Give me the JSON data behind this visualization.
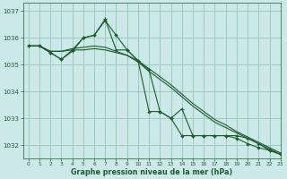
{
  "xlabel": "Graphe pression niveau de la mer (hPa)",
  "ylim": [
    1031.5,
    1037.3
  ],
  "xlim": [
    -0.5,
    23
  ],
  "yticks": [
    1032,
    1033,
    1034,
    1035,
    1036,
    1037
  ],
  "xticks": [
    0,
    1,
    2,
    3,
    4,
    5,
    6,
    7,
    8,
    9,
    10,
    11,
    12,
    13,
    14,
    15,
    16,
    17,
    18,
    19,
    20,
    21,
    22,
    23
  ],
  "bg_color": "#cce8e8",
  "grid_color": "#99ccbb",
  "line_color": "#1a5c2a",
  "smooth1": [
    1035.7,
    1035.7,
    1035.5,
    1035.5,
    1035.55,
    1035.55,
    1035.6,
    1035.55,
    1035.45,
    1035.35,
    1035.15,
    1034.85,
    1034.55,
    1034.25,
    1033.9,
    1033.55,
    1033.25,
    1032.95,
    1032.75,
    1032.5,
    1032.3,
    1032.1,
    1031.9,
    1031.7
  ],
  "smooth2": [
    1035.7,
    1035.7,
    1035.5,
    1035.5,
    1035.6,
    1035.65,
    1035.7,
    1035.65,
    1035.5,
    1035.35,
    1035.1,
    1034.75,
    1034.45,
    1034.15,
    1033.8,
    1033.45,
    1033.15,
    1032.85,
    1032.65,
    1032.45,
    1032.25,
    1032.05,
    1031.85,
    1031.65
  ],
  "marked_plus": [
    1035.7,
    1035.7,
    1035.45,
    1035.2,
    1035.5,
    1036.0,
    1036.1,
    1036.7,
    1035.55,
    1035.55,
    1035.15,
    1034.8,
    1033.25,
    1033.0,
    1033.35,
    1032.35,
    1032.35,
    1032.35,
    1032.35,
    1032.35,
    1032.25,
    1032.05,
    1031.8,
    1031.65
  ],
  "marked_diamond": [
    1035.7,
    1035.7,
    1035.45,
    1035.2,
    1035.55,
    1036.0,
    1036.1,
    1036.65,
    1036.1,
    1035.55,
    1035.15,
    1033.25,
    1033.25,
    1033.0,
    1032.35,
    1032.35,
    1032.35,
    1032.35,
    1032.35,
    1032.25,
    1032.05,
    1031.9,
    1031.8,
    1031.65
  ]
}
